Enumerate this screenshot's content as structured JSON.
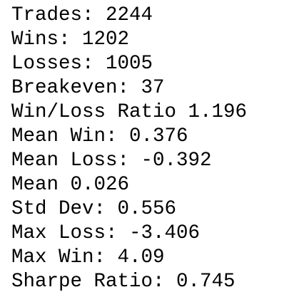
{
  "lines": [
    "Trades: 2244",
    "Wins: 1202",
    "Losses: 1005",
    "Breakeven: 37",
    "Win/Loss Ratio 1.196",
    "Mean Win: 0.376",
    "Mean Loss: -0.392",
    "Mean 0.026",
    "Std Dev: 0.556",
    "Max Loss: -3.406",
    "Max Win: 4.09",
    "Sharpe Ratio: 0.745"
  ]
}
